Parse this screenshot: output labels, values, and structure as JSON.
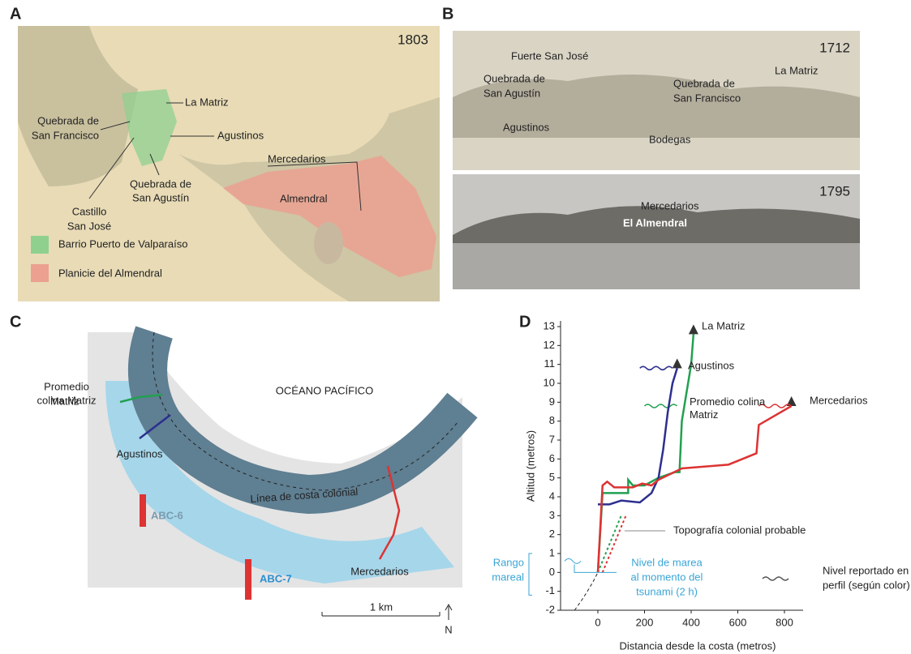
{
  "panels": {
    "a": {
      "letter": "A",
      "year": "1803",
      "labels": {
        "la_matriz": "La Matriz",
        "quebrada_san_francisco": [
          "Quebrada de",
          "San Francisco"
        ],
        "agustinos": "Agustinos",
        "castillo": [
          "Castillo",
          "San José"
        ],
        "quebrada_san_agustin": [
          "Quebrada de",
          "San Agustín"
        ],
        "mercedarios": "Mercedarios",
        "almendral": "Almendral"
      },
      "legend": [
        "Barrio Puerto de Valparaíso",
        "Planicie del Almendral"
      ]
    },
    "b": {
      "letter": "B",
      "year_top": "1712",
      "year_bottom": "1795",
      "labels": {
        "fuerte": "Fuerte San José",
        "quebrada_san_agustin": [
          "Quebrada de",
          "San Agustín"
        ],
        "quebrada_san_francisco": [
          "Quebrada de",
          "San Francisco"
        ],
        "la_matriz": "La Matriz",
        "agustinos": "Agustinos",
        "bodegas": "Bodegas",
        "mercedarios": "Mercedarios",
        "almendral": "El Almendral"
      }
    },
    "c": {
      "letter": "C",
      "labels": {
        "promedio": [
          "Promedio",
          "colina Matriz"
        ],
        "matriz": "Matriz",
        "oceano": "OCÉANO PACÍFICO",
        "agustinos": "Agustinos",
        "linea": "Línea de costa colonial",
        "abc6": "ABC-6",
        "abc7": "ABC-7",
        "mercedarios": "Mercedarios",
        "scale": "1 km",
        "north": "N"
      }
    }
  },
  "chart_data": {
    "type": "line",
    "letter": "D",
    "x_label": "Distancia desde la costa (metros)",
    "y_label": "Altitud (metros)",
    "xlim": [
      -160,
      880
    ],
    "ylim": [
      -2,
      13.3
    ],
    "xticks": [
      0,
      200,
      400,
      600,
      800
    ],
    "yticks": [
      -2,
      -1,
      0,
      1,
      2,
      3,
      4,
      5,
      6,
      7,
      8,
      9,
      10,
      11,
      12,
      13
    ],
    "series": [
      {
        "name": "Promedio colina Matriz",
        "color": "#22a050",
        "x": [
          0,
          20,
          130,
          130,
          150,
          200,
          260,
          330,
          350,
          360,
          400,
          410
        ],
        "values": [
          0,
          4.2,
          4.2,
          4.9,
          4.6,
          4.6,
          5.0,
          5.3,
          5.3,
          8,
          11,
          12.6
        ],
        "reported_level": 8.8
      },
      {
        "name": "Agustinos",
        "color": "#2c2f8f",
        "x": [
          0,
          50,
          100,
          180,
          230,
          260,
          280,
          300,
          320,
          340
        ],
        "values": [
          3.6,
          3.6,
          3.8,
          3.7,
          4.2,
          5,
          6.5,
          8.5,
          10,
          10.8
        ],
        "reported_level": 10.8
      },
      {
        "name": "Mercedarios",
        "color": "#dd3333",
        "x": [
          0,
          20,
          40,
          70,
          150,
          190,
          230,
          260,
          360,
          560,
          680,
          690,
          830
        ],
        "values": [
          0,
          4.6,
          4.8,
          4.5,
          4.5,
          4.7,
          4.6,
          4.9,
          5.5,
          5.7,
          6.3,
          7.8,
          8.8
        ],
        "reported_level": 8.8
      }
    ],
    "annotations": {
      "la_matriz": "La Matriz",
      "topografia": "Topografía colonial probable",
      "rango": [
        "Rango",
        "mareal"
      ],
      "nivel_marea": [
        "Nivel de marea",
        "al momento del",
        "tsunami (2 h)"
      ],
      "nivel_reportado": [
        "Nivel reportado en",
        "perfil (según color)"
      ]
    },
    "tidal_range": [
      -1.2,
      1.0
    ],
    "tsunami_tide_level": 0.6
  }
}
